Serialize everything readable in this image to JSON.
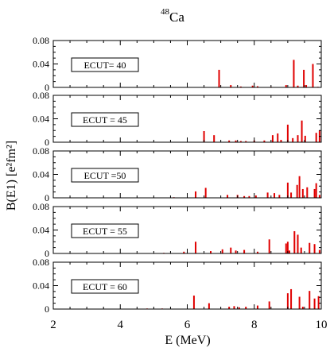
{
  "title": {
    "prefix": "48",
    "main": "Ca"
  },
  "xlabel": "E (MeV)",
  "ylabel": "B(E1) [e²fm²]",
  "chart_data": {
    "type": "bar",
    "title": "48Ca",
    "xlabel": "E (MeV)",
    "ylabel": "B(E1) [e2fm2]",
    "xlim": [
      2,
      10
    ],
    "ylim": [
      0,
      0.08
    ],
    "x_ticks": [
      "2",
      "4",
      "6",
      "8",
      "10"
    ],
    "y_ticks": [
      "0",
      "0.04",
      "0.08"
    ],
    "bar_color": "#e00000",
    "panels": [
      {
        "label": "ECUT= 40",
        "bars": [
          {
            "x": 6.95,
            "y": 0.03
          },
          {
            "x": 7.3,
            "y": 0.004
          },
          {
            "x": 7.6,
            "y": 0.0015
          },
          {
            "x": 7.95,
            "y": 0.003
          },
          {
            "x": 8.1,
            "y": 0.002
          },
          {
            "x": 8.5,
            "y": 0.001
          },
          {
            "x": 8.95,
            "y": 0.004
          },
          {
            "x": 9.18,
            "y": 0.047
          },
          {
            "x": 9.3,
            "y": 0.003
          },
          {
            "x": 9.48,
            "y": 0.03
          },
          {
            "x": 9.55,
            "y": 0.004
          },
          {
            "x": 9.75,
            "y": 0.04
          },
          {
            "x": 9.9,
            "y": 0.001
          }
        ]
      },
      {
        "label": "ECUT = 45",
        "bars": [
          {
            "x": 6.5,
            "y": 0.019
          },
          {
            "x": 6.8,
            "y": 0.012
          },
          {
            "x": 7.25,
            "y": 0.003
          },
          {
            "x": 7.45,
            "y": 0.003
          },
          {
            "x": 7.6,
            "y": 0.002
          },
          {
            "x": 7.75,
            "y": 0.002
          },
          {
            "x": 8.0,
            "y": 0.003
          },
          {
            "x": 8.3,
            "y": 0.003
          },
          {
            "x": 8.55,
            "y": 0.012
          },
          {
            "x": 8.7,
            "y": 0.015
          },
          {
            "x": 8.8,
            "y": 0.004
          },
          {
            "x": 9.0,
            "y": 0.03
          },
          {
            "x": 9.15,
            "y": 0.007
          },
          {
            "x": 9.3,
            "y": 0.012
          },
          {
            "x": 9.42,
            "y": 0.037
          },
          {
            "x": 9.52,
            "y": 0.011
          },
          {
            "x": 9.85,
            "y": 0.016
          },
          {
            "x": 9.95,
            "y": 0.02
          }
        ]
      },
      {
        "label": "ECUT =50",
        "bars": [
          {
            "x": 5.6,
            "y": 0.001
          },
          {
            "x": 6.25,
            "y": 0.011
          },
          {
            "x": 6.55,
            "y": 0.017
          },
          {
            "x": 7.2,
            "y": 0.005
          },
          {
            "x": 7.5,
            "y": 0.005
          },
          {
            "x": 7.7,
            "y": 0.003
          },
          {
            "x": 7.85,
            "y": 0.003
          },
          {
            "x": 8.05,
            "y": 0.004
          },
          {
            "x": 8.4,
            "y": 0.009
          },
          {
            "x": 8.6,
            "y": 0.008
          },
          {
            "x": 8.75,
            "y": 0.005
          },
          {
            "x": 9.0,
            "y": 0.026
          },
          {
            "x": 9.1,
            "y": 0.009
          },
          {
            "x": 9.28,
            "y": 0.022
          },
          {
            "x": 9.35,
            "y": 0.037
          },
          {
            "x": 9.45,
            "y": 0.015
          },
          {
            "x": 9.58,
            "y": 0.018
          },
          {
            "x": 9.8,
            "y": 0.015
          },
          {
            "x": 9.85,
            "y": 0.025
          },
          {
            "x": 9.95,
            "y": 0.005
          }
        ]
      },
      {
        "label": "ECUT = 55",
        "bars": [
          {
            "x": 5.3,
            "y": 0.001
          },
          {
            "x": 5.9,
            "y": 0.003
          },
          {
            "x": 6.25,
            "y": 0.02
          },
          {
            "x": 6.7,
            "y": 0.004
          },
          {
            "x": 7.05,
            "y": 0.007
          },
          {
            "x": 7.3,
            "y": 0.01
          },
          {
            "x": 7.45,
            "y": 0.005
          },
          {
            "x": 7.7,
            "y": 0.006
          },
          {
            "x": 8.1,
            "y": 0.003
          },
          {
            "x": 8.45,
            "y": 0.024
          },
          {
            "x": 8.95,
            "y": 0.017
          },
          {
            "x": 9.0,
            "y": 0.02
          },
          {
            "x": 9.05,
            "y": 0.005
          },
          {
            "x": 9.2,
            "y": 0.038
          },
          {
            "x": 9.3,
            "y": 0.032
          },
          {
            "x": 9.4,
            "y": 0.01
          },
          {
            "x": 9.65,
            "y": 0.018
          },
          {
            "x": 9.8,
            "y": 0.016
          },
          {
            "x": 9.95,
            "y": 0.006
          }
        ]
      },
      {
        "label": "ECUT = 60",
        "bars": [
          {
            "x": 4.8,
            "y": 0.001
          },
          {
            "x": 5.25,
            "y": 0.001
          },
          {
            "x": 6.2,
            "y": 0.023
          },
          {
            "x": 6.65,
            "y": 0.01
          },
          {
            "x": 7.25,
            "y": 0.004
          },
          {
            "x": 7.4,
            "y": 0.005
          },
          {
            "x": 7.55,
            "y": 0.003
          },
          {
            "x": 7.75,
            "y": 0.004
          },
          {
            "x": 8.1,
            "y": 0.006
          },
          {
            "x": 8.45,
            "y": 0.013
          },
          {
            "x": 9.0,
            "y": 0.027
          },
          {
            "x": 9.1,
            "y": 0.034
          },
          {
            "x": 9.35,
            "y": 0.021
          },
          {
            "x": 9.45,
            "y": 0.004
          },
          {
            "x": 9.65,
            "y": 0.031
          },
          {
            "x": 9.8,
            "y": 0.018
          },
          {
            "x": 9.92,
            "y": 0.022
          }
        ]
      }
    ]
  }
}
